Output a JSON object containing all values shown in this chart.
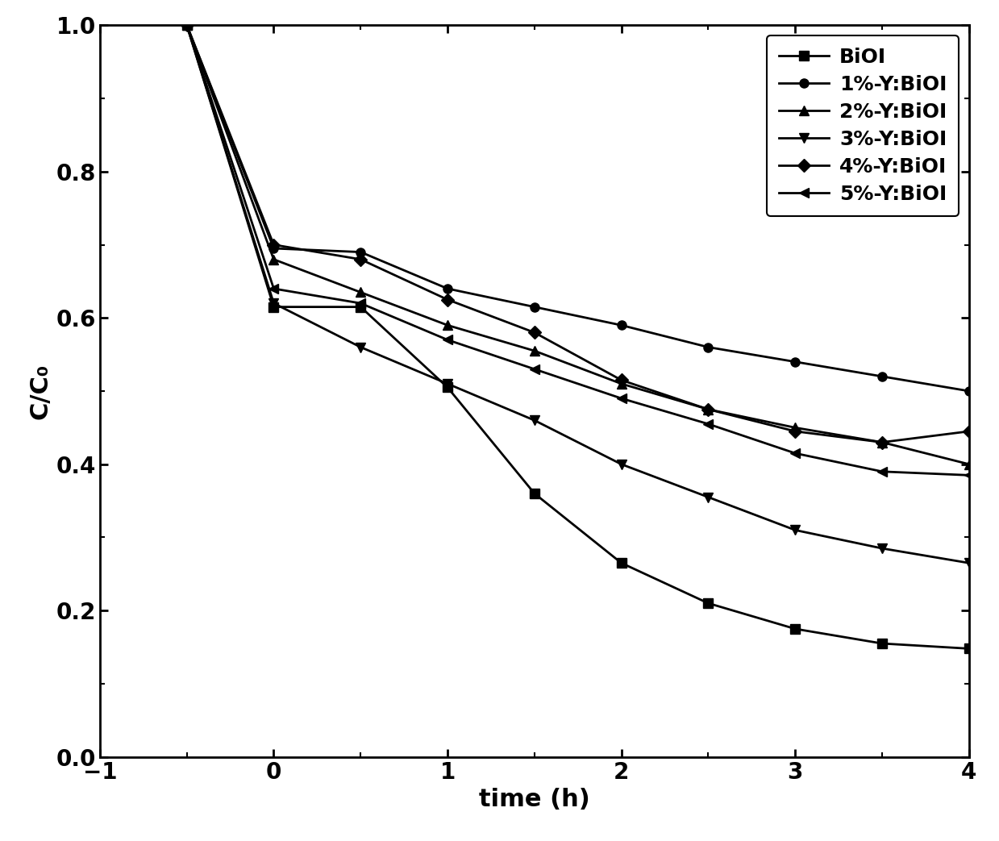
{
  "series": [
    {
      "label": "BiOI",
      "marker": "s",
      "x": [
        -0.5,
        0,
        0.5,
        1.0,
        1.5,
        2.0,
        2.5,
        3.0,
        3.5,
        4.0
      ],
      "y": [
        1.0,
        0.615,
        0.615,
        0.505,
        0.36,
        0.265,
        0.21,
        0.175,
        0.155,
        0.148
      ]
    },
    {
      "label": "1%-Y:BiOI",
      "marker": "o",
      "x": [
        -0.5,
        0,
        0.5,
        1.0,
        1.5,
        2.0,
        2.5,
        3.0,
        3.5,
        4.0
      ],
      "y": [
        1.0,
        0.695,
        0.69,
        0.64,
        0.615,
        0.59,
        0.56,
        0.54,
        0.52,
        0.5
      ]
    },
    {
      "label": "2%-Y:BiOI",
      "marker": "^",
      "x": [
        -0.5,
        0,
        0.5,
        1.0,
        1.5,
        2.0,
        2.5,
        3.0,
        3.5,
        4.0
      ],
      "y": [
        1.0,
        0.68,
        0.635,
        0.59,
        0.555,
        0.51,
        0.475,
        0.45,
        0.43,
        0.4
      ]
    },
    {
      "label": "3%-Y:BiOI",
      "marker": "v",
      "x": [
        -0.5,
        0,
        0.5,
        1.0,
        1.5,
        2.0,
        2.5,
        3.0,
        3.5,
        4.0
      ],
      "y": [
        1.0,
        0.62,
        0.56,
        0.51,
        0.46,
        0.4,
        0.355,
        0.31,
        0.285,
        0.265
      ]
    },
    {
      "label": "4%-Y:BiOI",
      "marker": "D",
      "x": [
        -0.5,
        0,
        0.5,
        1.0,
        1.5,
        2.0,
        2.5,
        3.0,
        3.5,
        4.0
      ],
      "y": [
        1.0,
        0.7,
        0.68,
        0.625,
        0.58,
        0.515,
        0.475,
        0.445,
        0.43,
        0.445
      ]
    },
    {
      "label": "5%-Y:BiOI",
      "marker": "<",
      "x": [
        -0.5,
        0,
        0.5,
        1.0,
        1.5,
        2.0,
        2.5,
        3.0,
        3.5,
        4.0
      ],
      "y": [
        1.0,
        0.64,
        0.62,
        0.57,
        0.53,
        0.49,
        0.455,
        0.415,
        0.39,
        0.385
      ]
    }
  ],
  "xlabel": "time (h)",
  "ylabel": "C/C₀",
  "xlim": [
    -1,
    4
  ],
  "ylim": [
    0.0,
    1.0
  ],
  "xticks": [
    -1,
    0,
    1,
    2,
    3,
    4
  ],
  "yticks": [
    0.0,
    0.2,
    0.4,
    0.6,
    0.8,
    1.0
  ],
  "line_color": "#000000",
  "linewidth": 2.0,
  "markersize": 8,
  "legend_loc": "upper right",
  "figsize": [
    12.39,
    10.43
  ],
  "dpi": 100
}
